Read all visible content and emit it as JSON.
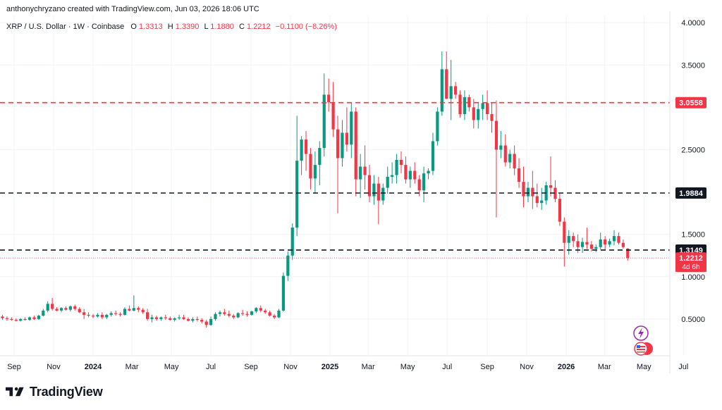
{
  "credit": "anthonychryzano created with TradingView.com, Jun 03, 2026 18:06 UTC",
  "brand": "TradingView",
  "brand_logo_icon": "tradingview-logo-icon",
  "side_icons": [
    "lightning-sparkle-icon",
    "us-flag-coin-icon"
  ],
  "colors": {
    "up": "#089981",
    "down": "#f23645",
    "level": "#131722",
    "current_price": "#f23645",
    "grid": "#f0f3fa"
  },
  "chart_data": {
    "type": "candlestick",
    "symbol": "XRP / U.S. Dollar · 1W · Coinbase",
    "ohlc": {
      "o_label": "O",
      "o": "1.3313",
      "h_label": "H",
      "h": "1.3390",
      "l_label": "L",
      "l": "1.1880",
      "c_label": "C",
      "c": "1.2212",
      "change": "−0.1100 (−8.26%)"
    },
    "y_ticks": [
      "4.0000",
      "3.5000",
      "2.5000",
      "1.5000",
      "1.0000",
      "0.5000"
    ],
    "ylim": [
      0.0,
      4.1
    ],
    "x_ticks": [
      {
        "label": "Sep",
        "date": "2023-09-01"
      },
      {
        "label": "Nov",
        "date": "2023-11-01"
      },
      {
        "label": "2024",
        "date": "2024-01-01"
      },
      {
        "label": "Mar",
        "date": "2024-03-01"
      },
      {
        "label": "May",
        "date": "2024-05-01"
      },
      {
        "label": "Jul",
        "date": "2024-07-01"
      },
      {
        "label": "Sep",
        "date": "2024-09-01"
      },
      {
        "label": "Nov",
        "date": "2024-11-01"
      },
      {
        "label": "2025",
        "date": "2025-01-01"
      },
      {
        "label": "Mar",
        "date": "2025-03-01"
      },
      {
        "label": "May",
        "date": "2025-05-01"
      },
      {
        "label": "Jul",
        "date": "2025-07-01"
      },
      {
        "label": "Sep",
        "date": "2025-09-01"
      },
      {
        "label": "Nov",
        "date": "2025-11-01"
      },
      {
        "label": "2026",
        "date": "2026-01-01"
      },
      {
        "label": "Mar",
        "date": "2026-03-01"
      },
      {
        "label": "May",
        "date": "2026-05-01"
      },
      {
        "label": "Jul",
        "date": "2026-07-01"
      }
    ],
    "levels": [
      {
        "price": 3.0558,
        "label": "3.0558",
        "style": "red-dashed"
      },
      {
        "price": 1.9884,
        "label": "1.9884",
        "style": "black-dashed"
      },
      {
        "price": 1.3149,
        "label": "1.3149",
        "style": "black-dashed"
      }
    ],
    "current_price": {
      "price": 1.2212,
      "label": "1.2212",
      "countdown": "4d 6h"
    },
    "first_candle_date": "2023-08-07",
    "candles": [
      [
        0.62,
        0.64,
        0.51,
        0.53
      ],
      [
        0.53,
        0.55,
        0.49,
        0.51
      ],
      [
        0.51,
        0.53,
        0.48,
        0.5
      ],
      [
        0.5,
        0.52,
        0.48,
        0.49
      ],
      [
        0.49,
        0.51,
        0.47,
        0.48
      ],
      [
        0.48,
        0.51,
        0.47,
        0.5
      ],
      [
        0.5,
        0.52,
        0.48,
        0.49
      ],
      [
        0.49,
        0.53,
        0.48,
        0.52
      ],
      [
        0.52,
        0.54,
        0.49,
        0.5
      ],
      [
        0.5,
        0.55,
        0.49,
        0.54
      ],
      [
        0.54,
        0.62,
        0.53,
        0.6
      ],
      [
        0.6,
        0.71,
        0.58,
        0.68
      ],
      [
        0.68,
        0.75,
        0.6,
        0.62
      ],
      [
        0.62,
        0.64,
        0.59,
        0.6
      ],
      [
        0.6,
        0.64,
        0.58,
        0.63
      ],
      [
        0.63,
        0.65,
        0.6,
        0.61
      ],
      [
        0.61,
        0.66,
        0.59,
        0.65
      ],
      [
        0.65,
        0.67,
        0.6,
        0.62
      ],
      [
        0.62,
        0.64,
        0.57,
        0.58
      ],
      [
        0.58,
        0.62,
        0.5,
        0.55
      ],
      [
        0.55,
        0.58,
        0.52,
        0.54
      ],
      [
        0.54,
        0.56,
        0.51,
        0.53
      ],
      [
        0.53,
        0.57,
        0.52,
        0.55
      ],
      [
        0.55,
        0.58,
        0.5,
        0.52
      ],
      [
        0.52,
        0.56,
        0.5,
        0.55
      ],
      [
        0.55,
        0.59,
        0.53,
        0.57
      ],
      [
        0.57,
        0.6,
        0.54,
        0.56
      ],
      [
        0.56,
        0.58,
        0.53,
        0.55
      ],
      [
        0.55,
        0.64,
        0.54,
        0.62
      ],
      [
        0.62,
        0.66,
        0.59,
        0.6
      ],
      [
        0.6,
        0.78,
        0.59,
        0.63
      ],
      [
        0.63,
        0.65,
        0.58,
        0.61
      ],
      [
        0.61,
        0.63,
        0.56,
        0.58
      ],
      [
        0.58,
        0.62,
        0.48,
        0.5
      ],
      [
        0.5,
        0.55,
        0.46,
        0.52
      ],
      [
        0.52,
        0.54,
        0.48,
        0.5
      ],
      [
        0.5,
        0.53,
        0.48,
        0.52
      ],
      [
        0.52,
        0.55,
        0.49,
        0.51
      ],
      [
        0.51,
        0.53,
        0.48,
        0.49
      ],
      [
        0.49,
        0.52,
        0.47,
        0.51
      ],
      [
        0.51,
        0.55,
        0.49,
        0.52
      ],
      [
        0.52,
        0.55,
        0.49,
        0.5
      ],
      [
        0.5,
        0.52,
        0.47,
        0.48
      ],
      [
        0.48,
        0.52,
        0.46,
        0.5
      ],
      [
        0.5,
        0.53,
        0.47,
        0.49
      ],
      [
        0.49,
        0.51,
        0.45,
        0.47
      ],
      [
        0.47,
        0.49,
        0.4,
        0.43
      ],
      [
        0.43,
        0.53,
        0.42,
        0.5
      ],
      [
        0.5,
        0.58,
        0.48,
        0.56
      ],
      [
        0.56,
        0.6,
        0.53,
        0.58
      ],
      [
        0.58,
        0.62,
        0.54,
        0.56
      ],
      [
        0.56,
        0.6,
        0.52,
        0.54
      ],
      [
        0.54,
        0.56,
        0.5,
        0.52
      ],
      [
        0.52,
        0.58,
        0.51,
        0.57
      ],
      [
        0.57,
        0.61,
        0.54,
        0.56
      ],
      [
        0.56,
        0.59,
        0.53,
        0.55
      ],
      [
        0.55,
        0.6,
        0.54,
        0.59
      ],
      [
        0.59,
        0.64,
        0.57,
        0.63
      ],
      [
        0.63,
        0.66,
        0.58,
        0.6
      ],
      [
        0.6,
        0.62,
        0.56,
        0.58
      ],
      [
        0.58,
        0.6,
        0.53,
        0.54
      ],
      [
        0.54,
        0.56,
        0.5,
        0.52
      ],
      [
        0.52,
        0.62,
        0.51,
        0.6
      ],
      [
        0.6,
        1.05,
        0.59,
        1.01
      ],
      [
        1.01,
        1.3,
        0.95,
        1.25
      ],
      [
        1.25,
        1.63,
        1.2,
        1.58
      ],
      [
        1.58,
        2.9,
        1.48,
        2.37
      ],
      [
        2.37,
        2.66,
        2.2,
        2.62
      ],
      [
        2.62,
        2.72,
        2.25,
        2.45
      ],
      [
        2.45,
        2.52,
        2.03,
        2.16
      ],
      [
        2.16,
        2.48,
        1.99,
        2.32
      ],
      [
        2.32,
        2.6,
        2.08,
        2.52
      ],
      [
        2.52,
        3.4,
        2.42,
        3.15
      ],
      [
        3.15,
        3.34,
        2.95,
        3.06
      ],
      [
        3.06,
        3.3,
        2.65,
        2.74
      ],
      [
        2.74,
        2.9,
        1.75,
        2.4
      ],
      [
        2.4,
        2.85,
        2.3,
        2.7
      ],
      [
        2.7,
        3.0,
        2.48,
        2.56
      ],
      [
        2.56,
        3.05,
        2.4,
        2.95
      ],
      [
        2.95,
        3.0,
        1.95,
        2.15
      ],
      [
        2.15,
        2.45,
        1.93,
        2.3
      ],
      [
        2.3,
        2.55,
        2.03,
        2.2
      ],
      [
        2.2,
        2.32,
        1.88,
        1.95
      ],
      [
        1.95,
        2.2,
        1.85,
        2.1
      ],
      [
        2.1,
        2.18,
        1.62,
        1.9
      ],
      [
        1.9,
        2.1,
        1.85,
        2.05
      ],
      [
        2.05,
        2.3,
        1.98,
        2.18
      ],
      [
        2.18,
        2.35,
        2.1,
        2.2
      ],
      [
        2.2,
        2.45,
        2.1,
        2.38
      ],
      [
        2.38,
        2.48,
        2.22,
        2.32
      ],
      [
        2.32,
        2.42,
        2.1,
        2.15
      ],
      [
        2.15,
        2.3,
        2.05,
        2.25
      ],
      [
        2.25,
        2.35,
        2.1,
        2.15
      ],
      [
        2.15,
        2.2,
        1.95,
        2.02
      ],
      [
        2.02,
        2.3,
        1.88,
        2.22
      ],
      [
        2.22,
        2.28,
        2.15,
        2.25
      ],
      [
        2.25,
        2.7,
        2.2,
        2.6
      ],
      [
        2.6,
        3.0,
        2.55,
        2.95
      ],
      [
        2.95,
        3.66,
        2.9,
        3.45
      ],
      [
        3.45,
        3.66,
        3.1,
        3.1
      ],
      [
        3.1,
        3.56,
        2.85,
        3.25
      ],
      [
        3.25,
        3.3,
        3.1,
        3.15
      ],
      [
        3.15,
        3.2,
        2.88,
        2.92
      ],
      [
        2.92,
        3.2,
        2.85,
        3.12
      ],
      [
        3.12,
        3.15,
        2.95,
        3.0
      ],
      [
        3.0,
        3.1,
        2.75,
        2.85
      ],
      [
        2.85,
        3.05,
        2.75,
        2.98
      ],
      [
        2.98,
        3.15,
        2.85,
        3.05
      ],
      [
        3.05,
        3.2,
        2.85,
        2.92
      ],
      [
        2.92,
        3.06,
        2.7,
        2.84
      ],
      [
        2.84,
        3.08,
        1.7,
        2.5
      ],
      [
        2.5,
        2.72,
        2.4,
        2.55
      ],
      [
        2.55,
        2.68,
        2.3,
        2.35
      ],
      [
        2.35,
        2.5,
        2.28,
        2.45
      ],
      [
        2.45,
        2.55,
        2.2,
        2.28
      ],
      [
        2.28,
        2.4,
        2.05,
        2.12
      ],
      [
        2.12,
        2.3,
        1.82,
        1.95
      ],
      [
        1.95,
        2.12,
        1.88,
        2.05
      ],
      [
        2.05,
        2.25,
        1.8,
        1.95
      ],
      [
        1.95,
        2.1,
        1.82,
        1.87
      ],
      [
        1.87,
        2.05,
        1.79,
        1.9
      ],
      [
        1.9,
        2.12,
        1.85,
        2.08
      ],
      [
        2.08,
        2.42,
        1.95,
        2.05
      ],
      [
        2.05,
        2.14,
        1.88,
        1.92
      ],
      [
        1.92,
        1.98,
        1.6,
        1.65
      ],
      [
        1.65,
        1.7,
        1.12,
        1.4
      ],
      [
        1.4,
        1.55,
        1.26,
        1.48
      ],
      [
        1.48,
        1.52,
        1.35,
        1.42
      ],
      [
        1.42,
        1.5,
        1.28,
        1.35
      ],
      [
        1.35,
        1.46,
        1.28,
        1.41
      ],
      [
        1.41,
        1.58,
        1.33,
        1.38
      ],
      [
        1.38,
        1.42,
        1.3,
        1.33
      ],
      [
        1.33,
        1.38,
        1.29,
        1.35
      ],
      [
        1.35,
        1.52,
        1.32,
        1.44
      ],
      [
        1.44,
        1.48,
        1.32,
        1.38
      ],
      [
        1.38,
        1.45,
        1.35,
        1.42
      ],
      [
        1.42,
        1.55,
        1.37,
        1.48
      ],
      [
        1.48,
        1.52,
        1.38,
        1.4
      ],
      [
        1.4,
        1.44,
        1.33,
        1.35
      ],
      [
        1.3313,
        1.339,
        1.188,
        1.2212
      ]
    ]
  }
}
